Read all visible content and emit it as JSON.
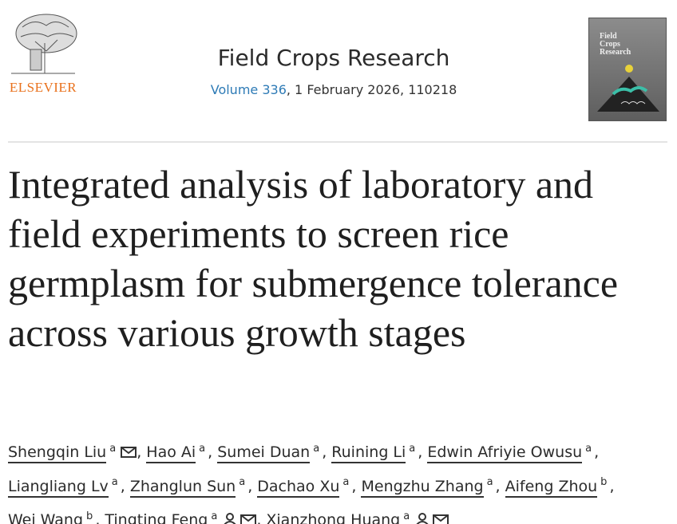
{
  "publisher": {
    "name": "ELSEVIER"
  },
  "journal": {
    "title": "Field Crops Research",
    "volume": "Volume 336",
    "issue_info": ", 1 February 2026, 110218"
  },
  "cover": {
    "lines": [
      "Field",
      "Crops",
      "Research"
    ]
  },
  "article": {
    "title": "Integrated analysis of laboratory and field experiments to screen rice germplasm for submergence tolerance across various growth stages"
  },
  "separator": ",",
  "authors": [
    {
      "name": "Shengqin Liu",
      "affiliation": "a"
    },
    {
      "name": "Hao Ai",
      "affiliation": "a"
    },
    {
      "name": "Sumei Duan",
      "affiliation": "a"
    },
    {
      "name": "Ruining Li",
      "affiliation": "a"
    },
    {
      "name": "Edwin Afriyie Owusu",
      "affiliation": "a"
    },
    {
      "name": "Liangliang Lv",
      "affiliation": "a"
    },
    {
      "name": "Zhanglun Sun",
      "affiliation": "a"
    },
    {
      "name": "Dachao Xu",
      "affiliation": "a"
    },
    {
      "name": "Mengzhu Zhang",
      "affiliation": "a"
    },
    {
      "name": "Aifeng Zhou",
      "affiliation": "b"
    },
    {
      "name": "Wei Wang",
      "affiliation": "b"
    },
    {
      "name": "Tingting Feng",
      "affiliation": "a"
    },
    {
      "name": "Xianzhong Huang",
      "affiliation": "a"
    }
  ]
}
